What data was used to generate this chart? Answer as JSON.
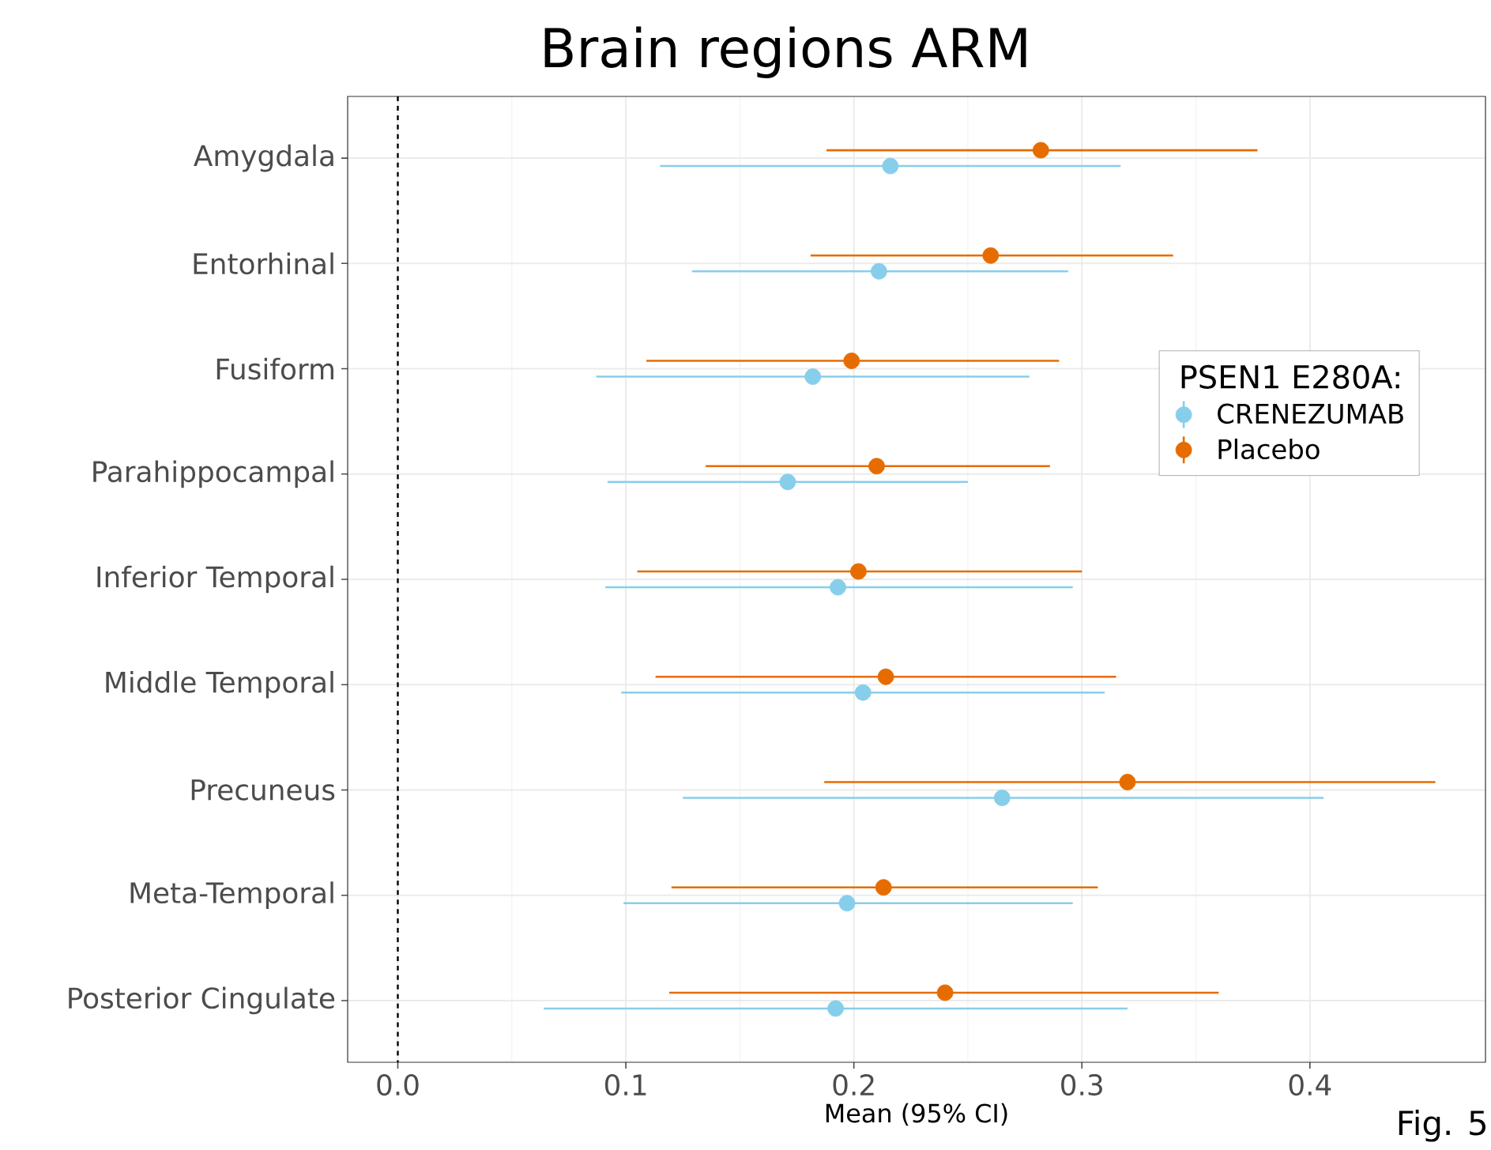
{
  "chart_data": {
    "type": "scatter",
    "orientation": "horizontal",
    "title": "Brain regions ARM",
    "xlabel": "Mean (95% CI)",
    "legend_title": "PSEN1 E280A:",
    "categories": [
      "Amygdala",
      "Entorhinal",
      "Fusiform",
      "Parahippocampal",
      "Inferior Temporal",
      "Middle Temporal",
      "Precuneus",
      "Meta-Temporal",
      "Posterior Cingulate"
    ],
    "series": [
      {
        "name": "CRENEZUMAB",
        "color": "#87ceeb",
        "values": [
          0.216,
          0.211,
          0.182,
          0.171,
          0.193,
          0.204,
          0.265,
          0.197,
          0.192
        ],
        "errors": [
          [
            0.115,
            0.317
          ],
          [
            0.129,
            0.294
          ],
          [
            0.087,
            0.277
          ],
          [
            0.092,
            0.25
          ],
          [
            0.091,
            0.296
          ],
          [
            0.098,
            0.31
          ],
          [
            0.125,
            0.406
          ],
          [
            0.099,
            0.296
          ],
          [
            0.064,
            0.32
          ]
        ]
      },
      {
        "name": "Placebo",
        "color": "#e66c00",
        "values": [
          0.282,
          0.26,
          0.199,
          0.21,
          0.202,
          0.214,
          0.32,
          0.213,
          0.24
        ],
        "errors": [
          [
            0.188,
            0.377
          ],
          [
            0.181,
            0.34
          ],
          [
            0.109,
            0.29
          ],
          [
            0.135,
            0.286
          ],
          [
            0.105,
            0.3
          ],
          [
            0.113,
            0.315
          ],
          [
            0.187,
            0.455
          ],
          [
            0.12,
            0.307
          ],
          [
            0.119,
            0.36
          ]
        ]
      }
    ],
    "xlim": [
      -0.022,
      0.477
    ],
    "xticks": [
      {
        "value": 0,
        "label": "0.0"
      },
      0.1,
      0.2,
      0.3,
      0.4
    ],
    "ref_lines": [
      {
        "axis": "x",
        "value": 0,
        "color": "#000000",
        "line_style": "dashed"
      }
    ],
    "annotations": [
      "Fig. 5"
    ],
    "grid": true,
    "legend": "right",
    "marker": "circle"
  }
}
